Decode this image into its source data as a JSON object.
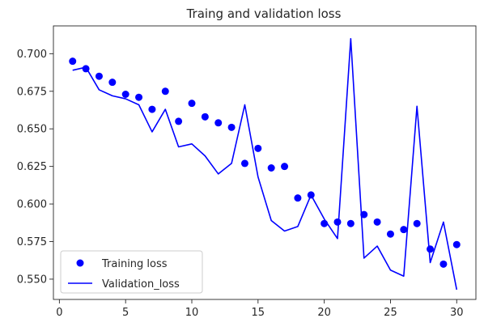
{
  "chart_data": {
    "type": "line",
    "title": "Traing and validation loss",
    "xlabel": "",
    "ylabel": "",
    "xlim": [
      -0.45,
      31.45
    ],
    "ylim": [
      0.5365,
      0.7185
    ],
    "xticks": [
      0,
      5,
      10,
      15,
      20,
      25,
      30
    ],
    "yticks": [
      0.55,
      0.575,
      0.6,
      0.625,
      0.65,
      0.675,
      0.7
    ],
    "ytick_labels": [
      "0.550",
      "0.575",
      "0.600",
      "0.625",
      "0.650",
      "0.675",
      "0.700"
    ],
    "grid": false,
    "legend_position": "lower-left",
    "x": [
      1,
      2,
      3,
      4,
      5,
      6,
      7,
      8,
      9,
      10,
      11,
      12,
      13,
      14,
      15,
      16,
      17,
      18,
      19,
      20,
      21,
      22,
      23,
      24,
      25,
      26,
      27,
      28,
      29,
      30
    ],
    "series": [
      {
        "name": "Training loss",
        "style": "markers",
        "color": "#0000ff",
        "values": [
          0.695,
          0.69,
          0.685,
          0.681,
          0.673,
          0.671,
          0.663,
          0.675,
          0.655,
          0.667,
          0.658,
          0.654,
          0.651,
          0.627,
          0.637,
          0.624,
          0.625,
          0.604,
          0.606,
          0.587,
          0.588,
          0.587,
          0.593,
          0.588,
          0.58,
          0.583,
          0.587,
          0.57,
          0.56,
          0.573
        ]
      },
      {
        "name": "Validation_loss",
        "style": "line",
        "color": "#0000ff",
        "values": [
          0.689,
          0.691,
          0.676,
          0.672,
          0.67,
          0.666,
          0.648,
          0.663,
          0.638,
          0.64,
          0.632,
          0.62,
          0.627,
          0.666,
          0.618,
          0.589,
          0.582,
          0.585,
          0.606,
          0.59,
          0.577,
          0.71,
          0.564,
          0.572,
          0.556,
          0.552,
          0.665,
          0.561,
          0.588,
          0.543
        ]
      }
    ]
  }
}
